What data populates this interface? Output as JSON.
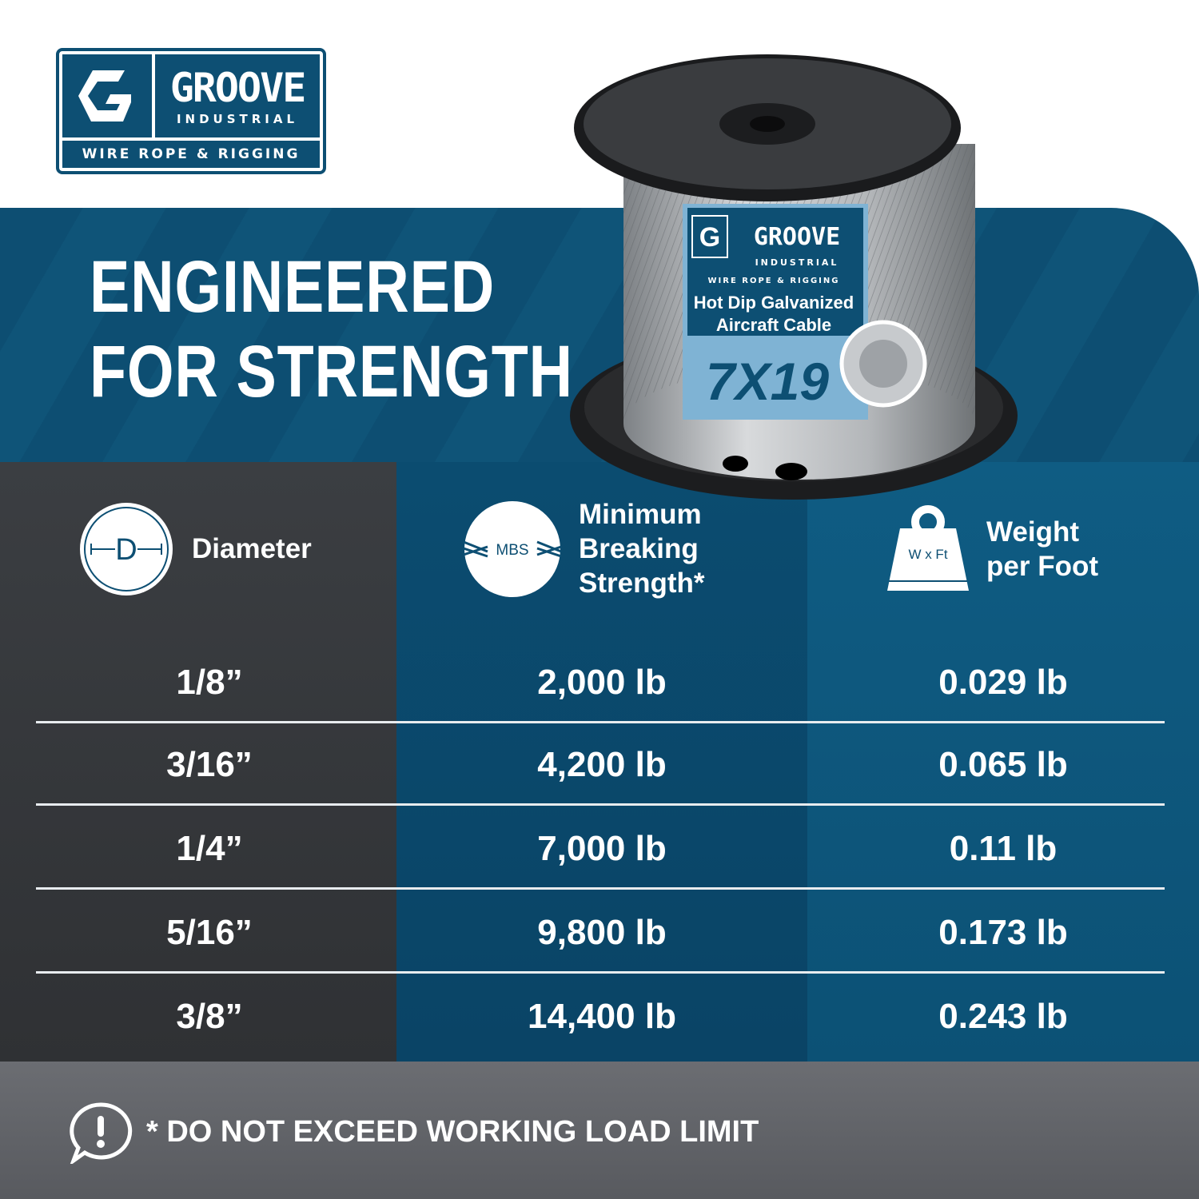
{
  "logo": {
    "brand": "GROOVE",
    "sub": "INDUSTRIAL",
    "tagline": "WIRE ROPE & RIGGING"
  },
  "headline": {
    "line1": "ENGINEERED",
    "line2": "FOR STRENGTH"
  },
  "product_label": {
    "brand": "GROOVE",
    "sub": "INDUSTRIAL",
    "tagline": "WIRE ROPE & RIGGING",
    "line1": "Hot Dip Galvanized",
    "line2": "Aircraft Cable",
    "construction": "7X19"
  },
  "table": {
    "headers": [
      {
        "label": "Diameter",
        "icon": "diameter-icon",
        "icon_text": "D"
      },
      {
        "label": "Minimum Breaking Strength*",
        "lines": [
          "Minimum",
          "Breaking",
          "Strength*"
        ],
        "icon": "mbs-icon",
        "icon_text": "MBS"
      },
      {
        "label": "Weight per Foot",
        "lines": [
          "Weight",
          "per Foot"
        ],
        "icon": "weight-icon",
        "icon_text": "W x Ft"
      }
    ],
    "rows": [
      {
        "diameter": "1/8”",
        "mbs": "2,000 lb",
        "weight": "0.029 lb"
      },
      {
        "diameter": "3/16”",
        "mbs": "4,200 lb",
        "weight": "0.065 lb"
      },
      {
        "diameter": "1/4”",
        "mbs": "7,000 lb",
        "weight": "0.11 lb"
      },
      {
        "diameter": "5/16”",
        "mbs": "9,800 lb",
        "weight": "0.173 lb"
      },
      {
        "diameter": "3/8”",
        "mbs": "14,400 lb",
        "weight": "0.243 lb"
      }
    ]
  },
  "footer": {
    "warning": "* DO NOT EXCEED WORKING LOAD LIMIT",
    "icon": "alert-icon"
  },
  "colors": {
    "brand_blue": "#0d4f73",
    "dark_column": "#3b3e42",
    "mid_column": "#0b4c70",
    "right_column": "#0f5c83",
    "footer": "#606267"
  }
}
